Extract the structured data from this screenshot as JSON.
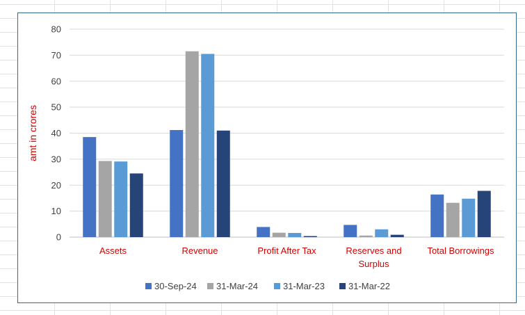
{
  "chart_data": {
    "type": "bar",
    "ylabel": "amt in crores",
    "xlabel": "",
    "ylim": [
      0,
      80
    ],
    "yticks": [
      0,
      10,
      20,
      30,
      40,
      50,
      60,
      70,
      80
    ],
    "grid": true,
    "legend_position": "bottom",
    "categories": [
      [
        "Assets"
      ],
      [
        "Revenue"
      ],
      [
        "Profit After Tax"
      ],
      [
        "Reserves and",
        "Surplus"
      ],
      [
        "Total Borrowings"
      ]
    ],
    "series": [
      {
        "name": "30-Sep-24",
        "color": "#4472c4",
        "values": [
          38.5,
          41.2,
          3.9,
          4.7,
          16.4
        ]
      },
      {
        "name": "31-Mar-24",
        "color": "#a5a5a5",
        "values": [
          29.3,
          71.5,
          1.7,
          0.6,
          13.2
        ]
      },
      {
        "name": "31-Mar-23",
        "color": "#5b9bd5",
        "values": [
          29.1,
          70.5,
          1.6,
          3.0,
          14.8
        ]
      },
      {
        "name": "31-Mar-22",
        "color": "#264478",
        "values": [
          24.5,
          41.0,
          0.4,
          0.9,
          17.8
        ]
      }
    ],
    "category_label_color": "#d40000",
    "ylabel_color": "#d40000"
  }
}
